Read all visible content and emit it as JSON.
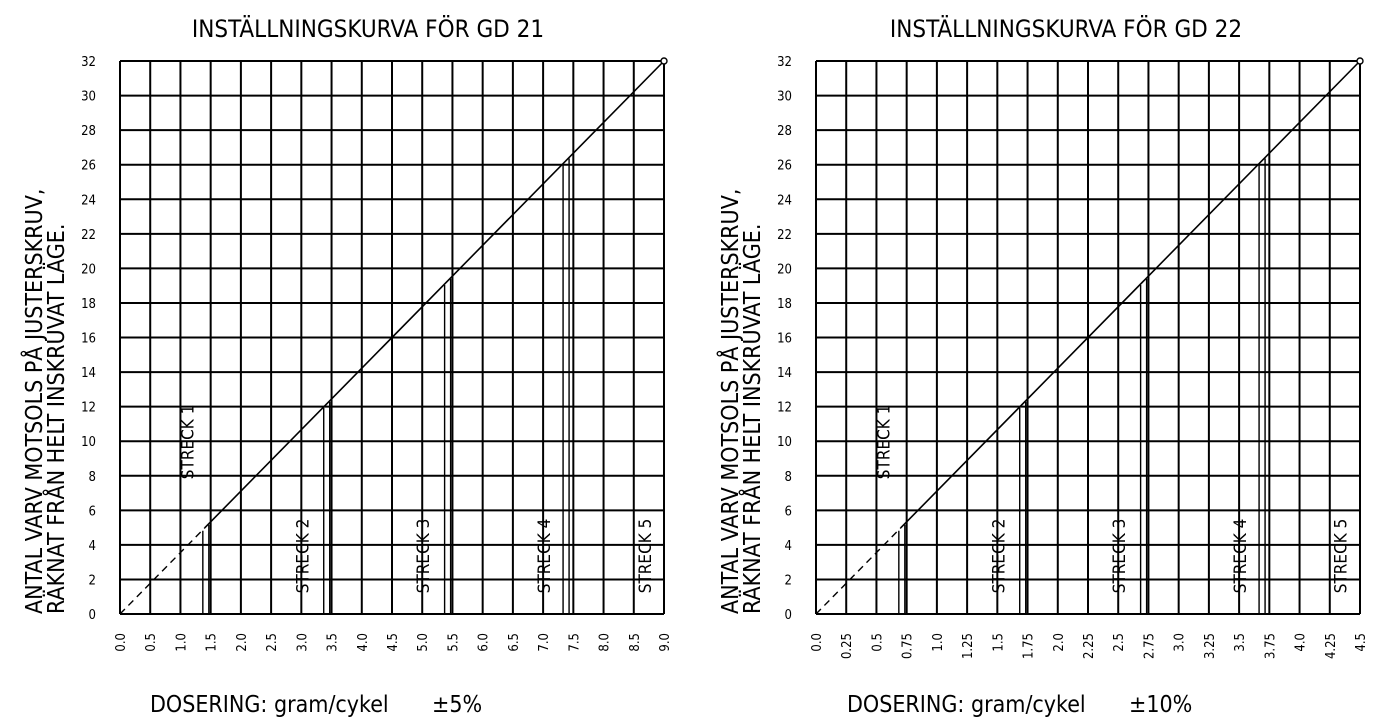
{
  "chart_data": [
    {
      "type": "line",
      "title": "INSTÄLLNINGSKURVA FÖR GD 21",
      "ylabel_lines": [
        "ANTAL VARV MOTSOLS PÅ JUSTERSKRUV,",
        "RÄKNAT FRÅN HELT INSKRUVAT LÄGE."
      ],
      "xlabel": "DOSERING: gram/cykel",
      "tolerance": "±5%",
      "xlim": [
        0,
        9
      ],
      "ylim": [
        0,
        32
      ],
      "x_ticks": [
        "0.0",
        "0.5",
        "1.0",
        "1.5",
        "2.0",
        "2.5",
        "3.0",
        "3.5",
        "4.0",
        "4.5",
        "5.0",
        "5.5",
        "6.0",
        "6.5",
        "7.0",
        "7.5",
        "8.0",
        "8.5",
        "9.0"
      ],
      "y_ticks": [
        "0",
        "2",
        "4",
        "6",
        "8",
        "10",
        "12",
        "14",
        "16",
        "18",
        "20",
        "22",
        "24",
        "26",
        "28",
        "30",
        "32"
      ],
      "grid": true,
      "series": [
        {
          "x": [
            0,
            9
          ],
          "y": [
            0,
            32
          ]
        }
      ],
      "dashed_until_x": 1.4,
      "streck": [
        {
          "label": "STRECK 1",
          "x": 1.42,
          "label_x": 1.1,
          "label_y": 7.8
        },
        {
          "label": "STRECK 2",
          "x": 3.42,
          "label_x": 3.0,
          "label_y": 1.2
        },
        {
          "label": "STRECK 3",
          "x": 5.42,
          "label_x": 5.0,
          "label_y": 1.2
        },
        {
          "label": "STRECK 4",
          "x": 7.38,
          "label_x": 7.0,
          "label_y": 1.2
        },
        {
          "label": "STRECK 5",
          "x": 9.0,
          "label_x": 8.67,
          "label_y": 1.2
        }
      ]
    },
    {
      "type": "line",
      "title": "INSTÄLLNINGSKURVA FÖR GD 22",
      "ylabel_lines": [
        "ANTAL VARV MOTSOLS PÅ JUSTERSKRUV,",
        "RÄKNAT FRÅN HELT INSKRUVAT LÄGE."
      ],
      "xlabel": "DOSERING: gram/cykel",
      "tolerance": "±10%",
      "xlim": [
        0,
        4.5
      ],
      "ylim": [
        0,
        32
      ],
      "x_ticks": [
        "0.0",
        "0.25",
        "0.5",
        "0.75",
        "1.0",
        "1.25",
        "1.5",
        "1.75",
        "2.0",
        "2.25",
        "2.5",
        "2.75",
        "3.0",
        "3.25",
        "3.5",
        "3.75",
        "4.0",
        "4.25",
        "4.5"
      ],
      "y_ticks": [
        "0",
        "2",
        "4",
        "6",
        "8",
        "10",
        "12",
        "14",
        "16",
        "18",
        "20",
        "22",
        "24",
        "26",
        "28",
        "30",
        "32"
      ],
      "grid": true,
      "series": [
        {
          "x": [
            0,
            4.5
          ],
          "y": [
            0,
            32
          ]
        }
      ],
      "dashed_until_x": 0.7,
      "streck": [
        {
          "label": "STRECK 1",
          "x": 0.71,
          "label_x": 0.55,
          "label_y": 7.8
        },
        {
          "label": "STRECK 2",
          "x": 1.71,
          "label_x": 1.5,
          "label_y": 1.2
        },
        {
          "label": "STRECK 3",
          "x": 2.71,
          "label_x": 2.5,
          "label_y": 1.2
        },
        {
          "label": "STRECK 4",
          "x": 3.69,
          "label_x": 3.5,
          "label_y": 1.2
        },
        {
          "label": "STRECK 5",
          "x": 4.5,
          "label_x": 4.33,
          "label_y": 1.2
        }
      ]
    }
  ]
}
